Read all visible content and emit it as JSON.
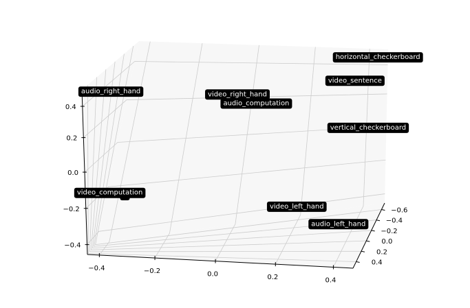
{
  "chart_data": {
    "type": "scatter",
    "projection": "3d",
    "grid": true,
    "pane_color": "#f7f7f7",
    "label_box_color": "#000000",
    "label_text_color": "#ffffff",
    "x_ticks": [
      "−0.4",
      "−0.2",
      "0.0",
      "0.2",
      "0.4"
    ],
    "y_ticks": [
      "−0.6",
      "−0.4",
      "−0.2",
      "0.0",
      "0.2",
      "0.4"
    ],
    "z_ticks": [
      "0.4",
      "0.2",
      "0.0",
      "−0.2",
      "−0.4"
    ],
    "points": [
      {
        "label": "audio_right_hand",
        "x": -0.45,
        "y": 0.15,
        "z": 0.42
      },
      {
        "label": "video_right_hand",
        "x": -0.02,
        "y": -0.05,
        "z": 0.38
      },
      {
        "label": "audio_computation",
        "x": 0.05,
        "y": -0.05,
        "z": 0.33
      },
      {
        "label": "horizontal_checkerboard",
        "x": 0.42,
        "y": -0.6,
        "z": 0.47
      },
      {
        "label": "video_sentence",
        "x": 0.35,
        "y": -0.5,
        "z": 0.35
      },
      {
        "label": "vertical_checkerboard",
        "x": 0.42,
        "y": -0.35,
        "z": 0.1
      },
      {
        "label": "e",
        "x": -0.4,
        "y": -0.05,
        "z": -0.2
      },
      {
        "label": "video_computation",
        "x": -0.45,
        "y": 0.0,
        "z": -0.18
      },
      {
        "label": "video_left_hand",
        "x": 0.2,
        "y": -0.1,
        "z": -0.3
      },
      {
        "label": "audio_left_hand",
        "x": 0.35,
        "y": -0.05,
        "z": -0.4
      }
    ]
  }
}
